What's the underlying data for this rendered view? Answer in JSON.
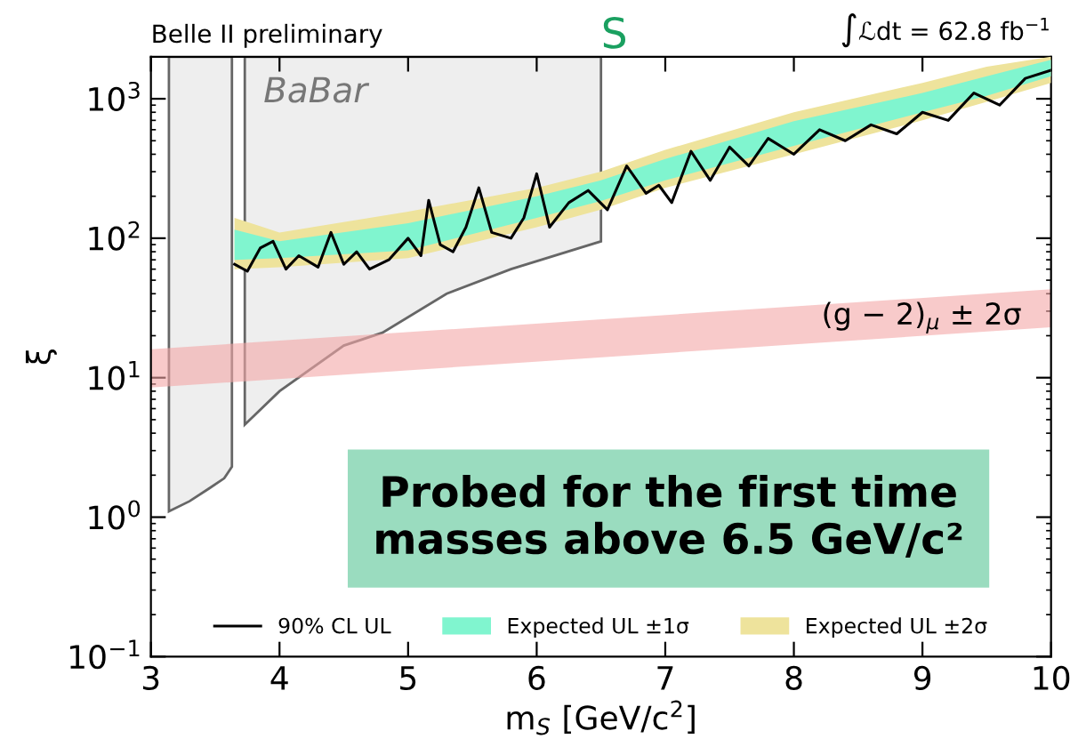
{
  "chart_data": {
    "type": "line",
    "xlabel": "m$_{S}$ [GeV/c$^{2}$]",
    "ylabel": "ξ",
    "log": "y",
    "xlim": [
      3,
      10
    ],
    "ylim": [
      0.1,
      2000
    ],
    "xticks": [
      3,
      4,
      5,
      6,
      7,
      8,
      9,
      10
    ],
    "yticks": [
      {
        "value": 0.1,
        "label": "10$^{−1}$"
      },
      {
        "value": 1,
        "label": "10$^{0}$"
      },
      {
        "value": 10,
        "label": "10$^{1}$"
      },
      {
        "value": 100,
        "label": "10$^{2}$"
      },
      {
        "value": 1000,
        "label": "10$^{3}$"
      }
    ],
    "legend": "bottom",
    "grid": false,
    "series": [
      {
        "type": "area",
        "color": "#eeeeee",
        "x": [
          3.14,
          3.3,
          3.45,
          3.57,
          3.63,
          3.64,
          3.73,
          4.0,
          4.5,
          4.8,
          5.3,
          5.8,
          6.5
        ],
        "values": [
          null,
          null,
          null,
          null,
          null,
          null,
          null,
          null,
          null,
          null,
          null,
          null,
          null
        ],
        "lower": [
          1.1,
          1.3,
          1.6,
          1.9,
          2.3,
          null,
          4.6,
          8,
          17,
          21,
          40,
          60,
          95
        ],
        "upper": [
          2000,
          2000,
          2000,
          2000,
          2000,
          null,
          2000,
          2000,
          2000,
          2000,
          2000,
          2000,
          2000
        ]
      },
      {
        "type": "area",
        "color": "#f4a7a7",
        "x": [
          3,
          10
        ],
        "values": [
          null,
          null
        ],
        "lower": [
          8.5,
          23
        ],
        "upper": [
          16,
          43
        ]
      },
      {
        "type": "area",
        "name": "Expected UL ±2σ",
        "color": "#eee39c",
        "x": [
          3.65,
          4,
          5,
          6,
          6.5,
          7,
          8,
          9,
          9.5,
          10
        ],
        "values": [
          null,
          null,
          null,
          null,
          null,
          null,
          null,
          null,
          null,
          null
        ],
        "lower": [
          60,
          62,
          72,
          120,
          160,
          230,
          400,
          700,
          950,
          1300
        ],
        "upper": [
          140,
          110,
          155,
          230,
          300,
          430,
          800,
          1300,
          1700,
          2000
        ]
      },
      {
        "type": "area",
        "name": "Expected UL ±1σ",
        "color": "#80f5cf",
        "x": [
          3.65,
          4,
          5,
          6,
          6.5,
          7,
          8,
          9,
          9.5,
          10
        ],
        "values": [
          null,
          null,
          null,
          null,
          null,
          null,
          null,
          null,
          null,
          null
        ],
        "lower": [
          70,
          72,
          82,
          140,
          185,
          260,
          460,
          800,
          1050,
          1450
        ],
        "upper": [
          115,
          95,
          128,
          200,
          260,
          370,
          690,
          1100,
          1450,
          1900
        ]
      },
      {
        "name": "90% CL UL",
        "color": "#000000",
        "x": [
          3.65,
          3.75,
          3.85,
          3.95,
          4.05,
          4.15,
          4.3,
          4.4,
          4.5,
          4.6,
          4.7,
          4.85,
          5.0,
          5.1,
          5.16,
          5.25,
          5.35,
          5.45,
          5.55,
          5.65,
          5.8,
          5.9,
          6.0,
          6.1,
          6.25,
          6.4,
          6.55,
          6.7,
          6.85,
          6.95,
          7.05,
          7.2,
          7.35,
          7.5,
          7.65,
          7.8,
          8.0,
          8.2,
          8.4,
          8.6,
          8.8,
          9.0,
          9.2,
          9.4,
          9.6,
          9.8,
          10.0
        ],
        "values": [
          65,
          58,
          85,
          95,
          60,
          75,
          62,
          110,
          65,
          80,
          60,
          70,
          100,
          75,
          187,
          90,
          80,
          120,
          230,
          110,
          100,
          140,
          290,
          120,
          180,
          220,
          160,
          330,
          210,
          240,
          180,
          420,
          260,
          450,
          330,
          520,
          400,
          600,
          500,
          650,
          560,
          800,
          700,
          1100,
          900,
          1400,
          1600
        ]
      }
    ],
    "annotations": [
      "Belle II preliminary",
      "∫ℒdt = 62.8 fb$^{−1}$",
      "Probed for the first time\nmasses above 6.5 GeV/c²",
      "BaBar",
      "(g − 2)$_{μ}$ ± 2σ",
      {
        "text": "S",
        "x": 6.5,
        "y": 2000
      }
    ]
  }
}
